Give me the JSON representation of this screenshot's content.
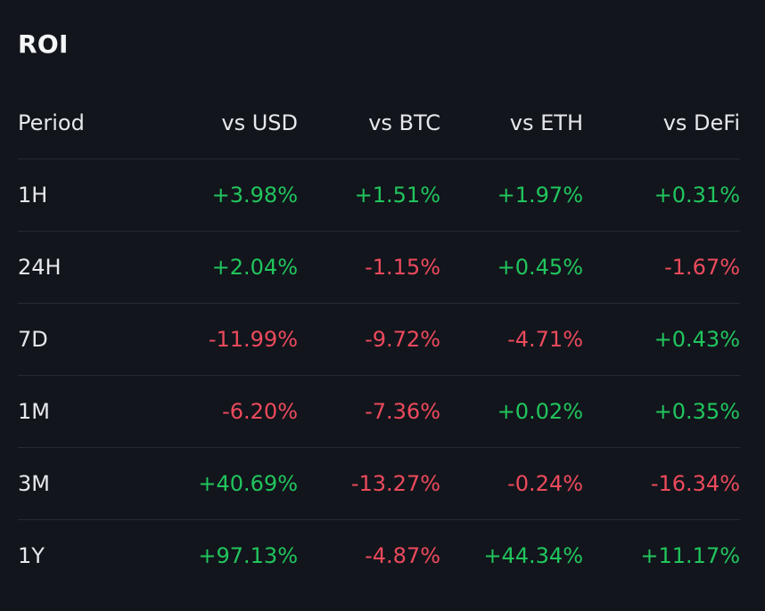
{
  "title": "ROI",
  "colors": {
    "positive": "#21c55d",
    "negative": "#ec4a5c",
    "background": "#12151c"
  },
  "columns": [
    "Period",
    "vs USD",
    "vs BTC",
    "vs ETH",
    "vs DeFi"
  ],
  "rows": [
    {
      "period": "1H",
      "values": [
        "+3.98%",
        "+1.51%",
        "+1.97%",
        "+0.31%"
      ]
    },
    {
      "period": "24H",
      "values": [
        "+2.04%",
        "-1.15%",
        "+0.45%",
        "-1.67%"
      ]
    },
    {
      "period": "7D",
      "values": [
        "-11.99%",
        "-9.72%",
        "-4.71%",
        "+0.43%"
      ]
    },
    {
      "period": "1M",
      "values": [
        "-6.20%",
        "-7.36%",
        "+0.02%",
        "+0.35%"
      ]
    },
    {
      "period": "3M",
      "values": [
        "+40.69%",
        "-13.27%",
        "-0.24%",
        "-16.34%"
      ]
    },
    {
      "period": "1Y",
      "values": [
        "+97.13%",
        "-4.87%",
        "+44.34%",
        "+11.17%"
      ]
    }
  ]
}
